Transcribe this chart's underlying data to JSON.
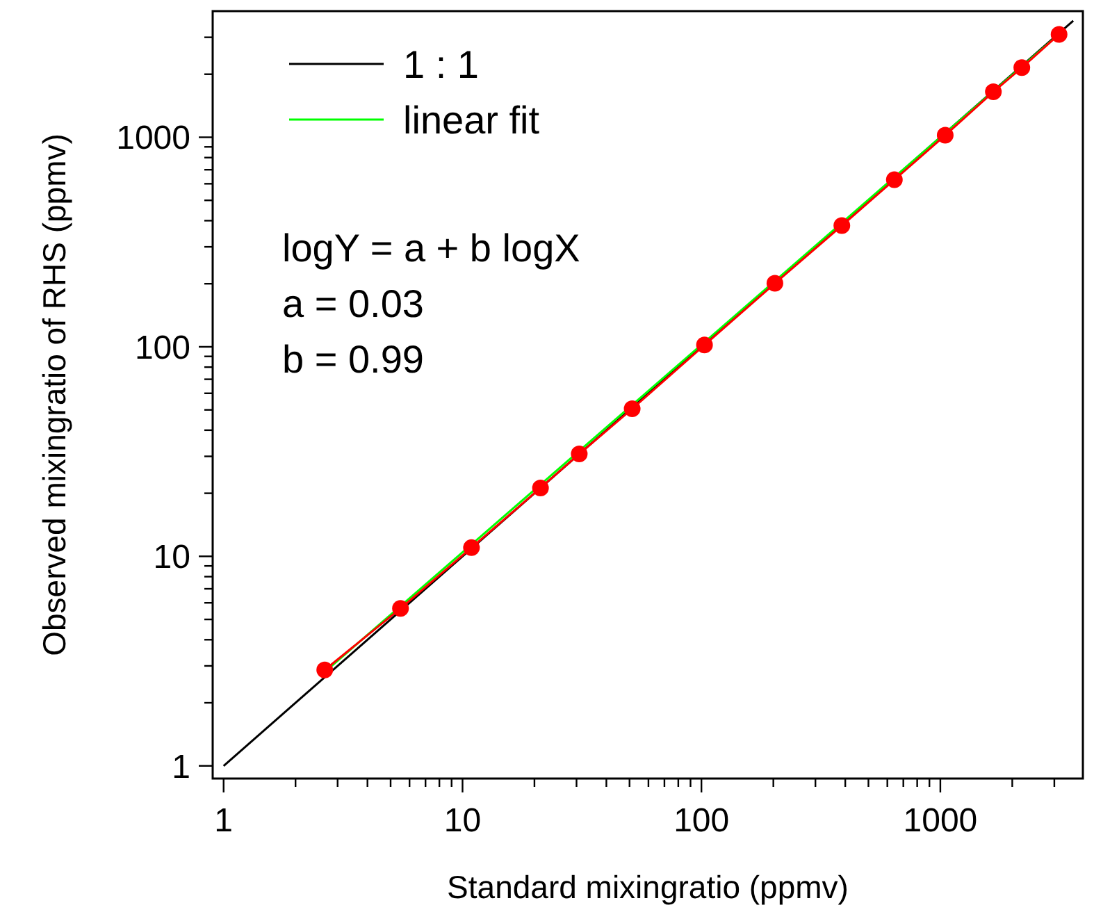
{
  "chart_data": {
    "type": "line",
    "xlabel": "Standard mixingratio (ppmv)",
    "ylabel": "Observed mixingratio of RHS (ppmv)",
    "log": "xy",
    "xlim": [
      0.9,
      3950
    ],
    "ylim": [
      0.87,
      4000
    ],
    "xticks": [
      1,
      {
        "value": 2,
        "label": null
      },
      {
        "value": 3,
        "label": null
      },
      {
        "value": 4,
        "label": null
      },
      {
        "value": 5,
        "label": null
      },
      {
        "value": 6,
        "label": null
      },
      {
        "value": 7,
        "label": null
      },
      {
        "value": 8,
        "label": null
      },
      {
        "value": 9,
        "label": null
      },
      10,
      {
        "value": 20,
        "label": null
      },
      {
        "value": 30,
        "label": null
      },
      {
        "value": 40,
        "label": null
      },
      {
        "value": 50,
        "label": null
      },
      {
        "value": 60,
        "label": null
      },
      {
        "value": 70,
        "label": null
      },
      {
        "value": 80,
        "label": null
      },
      {
        "value": 90,
        "label": null
      },
      100,
      {
        "value": 200,
        "label": null
      },
      {
        "value": 300,
        "label": null
      },
      {
        "value": 400,
        "label": null
      },
      {
        "value": 500,
        "label": null
      },
      {
        "value": 600,
        "label": null
      },
      {
        "value": 700,
        "label": null
      },
      {
        "value": 800,
        "label": null
      },
      {
        "value": 900,
        "label": null
      },
      1000,
      {
        "value": 2000,
        "label": null
      },
      {
        "value": 3000,
        "label": null
      }
    ],
    "yticks": [
      1,
      {
        "value": 2,
        "label": null
      },
      {
        "value": 3,
        "label": null
      },
      {
        "value": 4,
        "label": null
      },
      {
        "value": 5,
        "label": null
      },
      {
        "value": 6,
        "label": null
      },
      {
        "value": 7,
        "label": null
      },
      {
        "value": 8,
        "label": null
      },
      {
        "value": 9,
        "label": null
      },
      10,
      {
        "value": 20,
        "label": null
      },
      {
        "value": 30,
        "label": null
      },
      {
        "value": 40,
        "label": null
      },
      {
        "value": 50,
        "label": null
      },
      {
        "value": 60,
        "label": null
      },
      {
        "value": 70,
        "label": null
      },
      {
        "value": 80,
        "label": null
      },
      {
        "value": 90,
        "label": null
      },
      100,
      {
        "value": 200,
        "label": null
      },
      {
        "value": 300,
        "label": null
      },
      {
        "value": 400,
        "label": null
      },
      {
        "value": 500,
        "label": null
      },
      {
        "value": 600,
        "label": null
      },
      {
        "value": 700,
        "label": null
      },
      {
        "value": 800,
        "label": null
      },
      {
        "value": 900,
        "label": null
      },
      1000,
      {
        "value": 2000,
        "label": null
      },
      {
        "value": 3000,
        "label": null
      }
    ],
    "grid": false,
    "legend": "top left",
    "series": [
      {
        "name": "1 : 1",
        "color": "#000000",
        "marker": "none",
        "x": [
          1,
          3600
        ],
        "values": [
          1,
          3600
        ]
      },
      {
        "color": "#ff0000",
        "marker": "circle",
        "x": [
          2.65,
          5.5,
          10.9,
          21.2,
          30.8,
          51.3,
          103,
          203,
          387,
          642,
          1048,
          1667,
          2193,
          3140
        ],
        "values": [
          2.87,
          5.64,
          11.0,
          21.2,
          30.8,
          50.6,
          102,
          201,
          379,
          627,
          1023,
          1648,
          2149,
          3099
        ]
      },
      {
        "name": "linear fit",
        "color": "#00ff00",
        "marker": "none",
        "x": [
          2.75,
          3140
        ],
        "values": [
          2.91,
          3105
        ]
      }
    ],
    "annotations": [
      "logY = a + b logX",
      "a = 0.03",
      "b = 0.99"
    ]
  }
}
